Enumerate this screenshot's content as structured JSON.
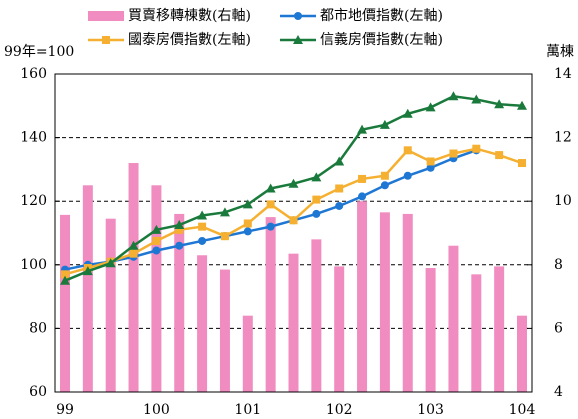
{
  "chart_data": {
    "type": "bar",
    "left_axis_label": "99年=100",
    "right_axis_label": "萬棟",
    "categories": [
      "99",
      null,
      null,
      null,
      "100",
      null,
      null,
      null,
      "101",
      null,
      null,
      null,
      "102",
      null,
      null,
      null,
      "103",
      null,
      null,
      null,
      "104"
    ],
    "series": [
      {
        "name": "買賣移轉棟數(右軸)",
        "type": "bar",
        "axis": "y2",
        "color": "#f08cc0",
        "values": [
          9.57,
          10.5,
          9.45,
          11.2,
          10.5,
          9.6,
          8.3,
          7.85,
          6.4,
          9.5,
          8.35,
          8.8,
          7.95,
          10.0,
          9.65,
          9.6,
          7.9,
          8.6,
          7.7,
          7.95,
          6.4
        ]
      },
      {
        "name": "都市地價指數(左軸)",
        "type": "line",
        "marker": "circle",
        "color": "#1f77d4",
        "values": [
          98.5,
          100,
          101,
          102.5,
          104.5,
          106,
          107.5,
          109,
          110.5,
          112,
          114,
          116,
          118.5,
          121.5,
          125,
          128,
          130.5,
          133.5,
          136,
          null,
          null
        ]
      },
      {
        "name": "國泰房價指數(左軸)",
        "type": "line",
        "marker": "square",
        "color": "#f5b031",
        "values": [
          97,
          99,
          101,
          103.5,
          107.5,
          111,
          112,
          109,
          113,
          119,
          114,
          120.5,
          124,
          127,
          128,
          136,
          132.5,
          135,
          136.5,
          134.5,
          132
        ]
      },
      {
        "name": "信義房價指數(左軸)",
        "type": "line",
        "marker": "triangle",
        "color": "#1a7a3c",
        "values": [
          95,
          98,
          100.5,
          106,
          111,
          112.5,
          115.5,
          116.5,
          119,
          124,
          125.5,
          127.5,
          132.5,
          142.5,
          144,
          147.5,
          149.5,
          153,
          152,
          150.5,
          150
        ]
      }
    ],
    "ylim": [
      60,
      160
    ],
    "yticks": [
      60,
      80,
      100,
      120,
      140,
      160
    ],
    "y2lim": [
      4,
      14
    ],
    "y2ticks": [
      4,
      6,
      8,
      10,
      12,
      14
    ],
    "grid": true
  }
}
